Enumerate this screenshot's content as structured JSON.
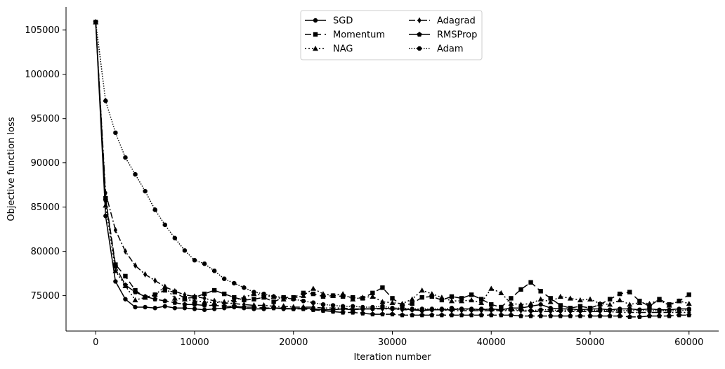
{
  "chart_data": {
    "type": "line",
    "title": "",
    "xlabel": "Iteration number",
    "ylabel": "Objective function loss",
    "xlim": [
      -3000,
      63000
    ],
    "ylim": [
      71000,
      107600
    ],
    "xticks": [
      0,
      10000,
      20000,
      30000,
      40000,
      50000,
      60000
    ],
    "yticks": [
      75000,
      80000,
      85000,
      90000,
      95000,
      100000,
      105000
    ],
    "x": [
      0,
      1000,
      2000,
      3000,
      4000,
      5000,
      6000,
      7000,
      8000,
      9000,
      10000,
      11000,
      12000,
      13000,
      14000,
      15000,
      16000,
      17000,
      18000,
      19000,
      20000,
      21000,
      22000,
      23000,
      24000,
      25000,
      26000,
      27000,
      28000,
      29000,
      30000,
      31000,
      32000,
      33000,
      34000,
      35000,
      36000,
      37000,
      38000,
      39000,
      40000,
      41000,
      42000,
      43000,
      44000,
      45000,
      46000,
      47000,
      48000,
      49000,
      50000,
      51000,
      52000,
      53000,
      54000,
      55000,
      56000,
      57000,
      58000,
      59000,
      60000
    ],
    "legend": {
      "position": "top-center",
      "columns": 2
    },
    "grid": false,
    "series": [
      {
        "name": "SGD",
        "marker": "circle",
        "dash": "solid",
        "values": [
          105900,
          84000,
          76600,
          74600,
          73700,
          73700,
          73600,
          73800,
          73600,
          73600,
          73500,
          73400,
          73500,
          73600,
          73700,
          73600,
          73500,
          73500,
          73600,
          73500,
          73500,
          73600,
          73500,
          73400,
          73400,
          73500,
          73400,
          73500,
          73500,
          73600,
          73500,
          73500,
          73400,
          73300,
          73400,
          73400,
          73400,
          73500,
          73500,
          73400,
          73500,
          73400,
          73600,
          73600,
          73800,
          74000,
          73600,
          73500,
          73500,
          73400,
          73500,
          73500,
          73400,
          73500,
          73500,
          73400,
          73500,
          73400,
          73400,
          73500,
          73500
        ]
      },
      {
        "name": "Momentum",
        "marker": "square",
        "dash": "dashed",
        "values": [
          105900,
          86000,
          78500,
          77200,
          75600,
          74800,
          75100,
          75600,
          75400,
          74700,
          74800,
          75200,
          75600,
          75200,
          74800,
          74500,
          74600,
          74800,
          74300,
          74800,
          74800,
          75300,
          75200,
          74900,
          75000,
          74900,
          74800,
          74700,
          75300,
          75900,
          74700,
          73900,
          74100,
          74800,
          74900,
          74500,
          74900,
          74700,
          75100,
          74600,
          74000,
          73700,
          74700,
          75700,
          76500,
          75500,
          74700,
          73900,
          73600,
          73800,
          73600,
          74000,
          74600,
          75200,
          75400,
          74400,
          73800,
          74600,
          74000,
          74400,
          75100
        ]
      },
      {
        "name": "NAG",
        "marker": "triangle",
        "dash": "dotted",
        "values": [
          105900,
          85200,
          77800,
          76100,
          74500,
          74800,
          75100,
          76000,
          74700,
          74600,
          74400,
          74300,
          74200,
          74300,
          74500,
          74800,
          75200,
          75000,
          74900,
          74600,
          74700,
          75000,
          75800,
          75200,
          75000,
          75200,
          74600,
          74800,
          74900,
          74300,
          74200,
          74100,
          74600,
          75600,
          75200,
          74800,
          74400,
          74400,
          74500,
          74200,
          75800,
          75300,
          74100,
          74000,
          74100,
          74600,
          74300,
          74900,
          74700,
          74500,
          74600,
          74100,
          74000,
          74500,
          74000,
          74200,
          74100,
          74500,
          73900,
          74400,
          74100
        ]
      },
      {
        "name": "Adagrad",
        "marker": "diamond",
        "dash": "dashdot",
        "values": [
          105900,
          86600,
          82400,
          80000,
          78400,
          77400,
          76700,
          76000,
          75500,
          75100,
          74900,
          74700,
          74400,
          74200,
          74100,
          74000,
          73900,
          73900,
          73800,
          73800,
          73700,
          73700,
          73700,
          73600,
          73600,
          73600,
          73500,
          73500,
          73500,
          73500,
          73500,
          73400,
          73400,
          73400,
          73400,
          73400,
          73300,
          73300,
          73300,
          73300,
          73300,
          73300,
          73300,
          73300,
          73200,
          73200,
          73200,
          73200,
          73200,
          73200,
          73200,
          73200,
          73200,
          73100,
          73100,
          73100,
          73100,
          73100,
          73100,
          73100,
          73100
        ]
      },
      {
        "name": "RMSProp",
        "marker": "pentagon",
        "dash": "longdash",
        "values": [
          105900,
          85800,
          78300,
          76200,
          75400,
          74900,
          74600,
          74400,
          74200,
          74000,
          74000,
          73900,
          73900,
          73800,
          73800,
          73700,
          73700,
          73600,
          73600,
          73600,
          73500,
          73500,
          73400,
          73300,
          73200,
          73100,
          73100,
          73000,
          72900,
          72900,
          72900,
          72800,
          72800,
          72800,
          72800,
          72800,
          72800,
          72800,
          72800,
          72800,
          72800,
          72800,
          72800,
          72700,
          72700,
          72700,
          72700,
          72700,
          72700,
          72700,
          72700,
          72700,
          72700,
          72700,
          72600,
          72600,
          72700,
          72700,
          72700,
          72800,
          72800
        ]
      },
      {
        "name": "Adam",
        "marker": "octagon",
        "dash": "densedot",
        "values": [
          105900,
          97000,
          93400,
          90600,
          88700,
          86800,
          84700,
          83000,
          81500,
          80100,
          79000,
          78600,
          77800,
          76900,
          76400,
          75900,
          75400,
          75200,
          74900,
          74800,
          74600,
          74400,
          74200,
          74000,
          73900,
          73800,
          73800,
          73700,
          73700,
          73800,
          73600,
          73600,
          73500,
          73500,
          73500,
          73500,
          73600,
          73500,
          73400,
          73500,
          73400,
          73400,
          73400,
          73400,
          73300,
          73400,
          73400,
          73300,
          73400,
          73300,
          73400,
          73300,
          73400,
          73300,
          73300,
          73400,
          73300,
          73300,
          73300,
          73300,
          73400
        ]
      }
    ]
  }
}
